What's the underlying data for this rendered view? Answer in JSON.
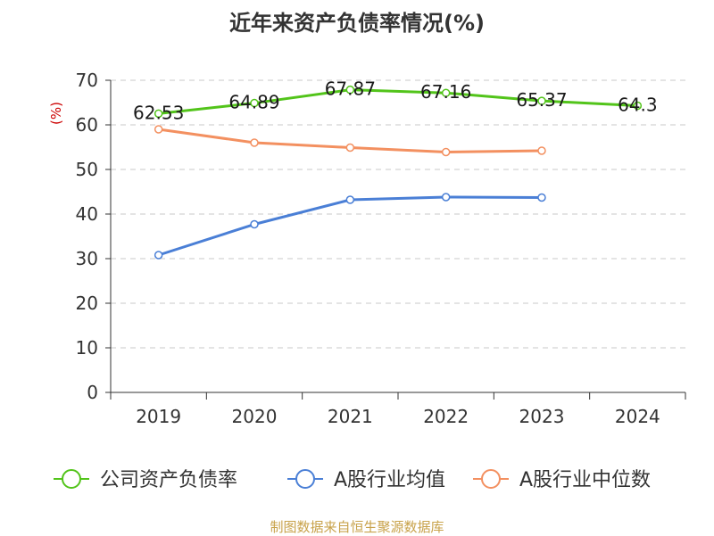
{
  "chart_data": {
    "type": "line",
    "title": "近年来资产负债率情况(%)",
    "ylabel": "(%)",
    "categories": [
      "2019",
      "2020",
      "2021",
      "2022",
      "2023",
      "2024"
    ],
    "ylim": [
      0,
      70
    ],
    "yticks": [
      "0",
      "10",
      "20",
      "30",
      "40",
      "50",
      "60",
      "70"
    ],
    "grid": true,
    "legend_position": "bottom",
    "series": [
      {
        "name": "公司资产负债率",
        "color": "#52c41a",
        "values": [
          62.53,
          64.89,
          67.87,
          67.16,
          65.37,
          64.3
        ],
        "labels": [
          "62.53",
          "64.89",
          "67.87",
          "67.16",
          "65.37",
          "64.3"
        ]
      },
      {
        "name": "A股行业均值",
        "color": "#4a7fd6",
        "values": [
          30.8,
          37.7,
          43.2,
          43.8,
          43.7,
          null
        ]
      },
      {
        "name": "A股行业中位数",
        "color": "#f39060",
        "values": [
          59.0,
          56.0,
          54.9,
          53.9,
          54.2,
          null
        ]
      }
    ]
  },
  "source": "制图数据来自恒生聚源数据库"
}
